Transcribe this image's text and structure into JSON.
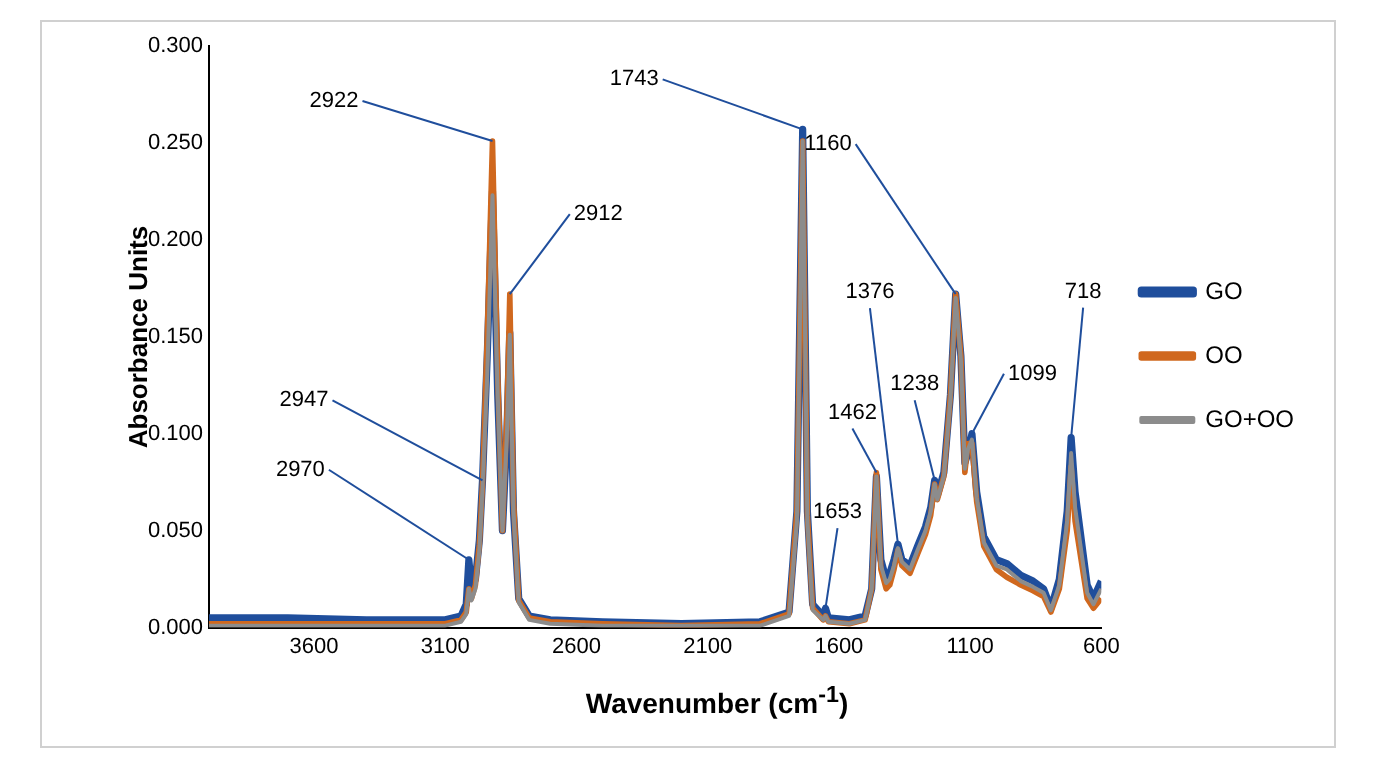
{
  "chart_data": {
    "type": "line",
    "xlabel": "Wavenumber (cm$^{-1}$)",
    "ylabel": "Absorbance Units",
    "x": [
      4000,
      3700,
      3400,
      3100,
      3040,
      3020,
      3010,
      3000,
      2985,
      2970,
      2958,
      2940,
      2920,
      2900,
      2882,
      2865,
      2854,
      2840,
      2820,
      2780,
      2700,
      2500,
      2200,
      1900,
      1790,
      1760,
      1738,
      1720,
      1700,
      1660,
      1651,
      1640,
      1560,
      1500,
      1475,
      1457,
      1440,
      1420,
      1406,
      1390,
      1375,
      1360,
      1329,
      1300,
      1270,
      1250,
      1235,
      1225,
      1200,
      1175,
      1155,
      1135,
      1120,
      1108,
      1093,
      1075,
      1048,
      1000,
      960,
      907,
      860,
      820,
      792,
      760,
      730,
      715,
      700,
      654,
      630,
      600
    ],
    "series": [
      {
        "name": "GO",
        "color": "#1f4e9c",
        "values": [
          0.005,
          0.005,
          0.004,
          0.004,
          0.006,
          0.012,
          0.035,
          0.02,
          0.025,
          0.045,
          0.076,
          0.14,
          0.225,
          0.12,
          0.05,
          0.1,
          0.152,
          0.06,
          0.015,
          0.006,
          0.004,
          0.003,
          0.002,
          0.003,
          0.008,
          0.06,
          0.257,
          0.06,
          0.012,
          0.006,
          0.01,
          0.005,
          0.004,
          0.006,
          0.02,
          0.078,
          0.035,
          0.025,
          0.028,
          0.035,
          0.043,
          0.035,
          0.032,
          0.042,
          0.052,
          0.062,
          0.076,
          0.068,
          0.08,
          0.12,
          0.172,
          0.14,
          0.085,
          0.09,
          0.1,
          0.07,
          0.047,
          0.035,
          0.033,
          0.027,
          0.024,
          0.02,
          0.01,
          0.025,
          0.06,
          0.098,
          0.07,
          0.022,
          0.015,
          0.024
        ]
      },
      {
        "name": "OO",
        "color": "#d0681e",
        "values": [
          0.002,
          0.002,
          0.002,
          0.002,
          0.004,
          0.008,
          0.02,
          0.015,
          0.022,
          0.043,
          0.074,
          0.15,
          0.251,
          0.13,
          0.05,
          0.11,
          0.172,
          0.065,
          0.014,
          0.005,
          0.003,
          0.002,
          0.001,
          0.002,
          0.007,
          0.06,
          0.251,
          0.058,
          0.01,
          0.004,
          0.006,
          0.003,
          0.002,
          0.004,
          0.02,
          0.08,
          0.03,
          0.02,
          0.022,
          0.03,
          0.04,
          0.032,
          0.028,
          0.038,
          0.048,
          0.058,
          0.074,
          0.066,
          0.078,
          0.12,
          0.172,
          0.14,
          0.08,
          0.095,
          0.095,
          0.065,
          0.042,
          0.03,
          0.026,
          0.022,
          0.019,
          0.016,
          0.008,
          0.02,
          0.05,
          0.083,
          0.055,
          0.015,
          0.01,
          0.015
        ]
      },
      {
        "name": "GO+OO",
        "color": "#8c8c8c",
        "values": [
          0.001,
          0.001,
          0.001,
          0.001,
          0.003,
          0.007,
          0.02,
          0.014,
          0.02,
          0.04,
          0.072,
          0.13,
          0.223,
          0.12,
          0.05,
          0.1,
          0.151,
          0.06,
          0.013,
          0.004,
          0.002,
          0.001,
          0.001,
          0.001,
          0.006,
          0.055,
          0.251,
          0.055,
          0.009,
          0.004,
          0.006,
          0.003,
          0.002,
          0.004,
          0.02,
          0.078,
          0.032,
          0.023,
          0.025,
          0.032,
          0.041,
          0.034,
          0.03,
          0.04,
          0.05,
          0.06,
          0.074,
          0.066,
          0.078,
          0.118,
          0.17,
          0.138,
          0.082,
          0.092,
          0.097,
          0.067,
          0.044,
          0.032,
          0.03,
          0.024,
          0.021,
          0.018,
          0.009,
          0.022,
          0.055,
          0.09,
          0.062,
          0.018,
          0.012,
          0.02
        ]
      }
    ],
    "xlim": [
      4000,
      600
    ],
    "xticks": [
      3600,
      3100,
      2600,
      2100,
      1600,
      1100,
      600
    ],
    "ylim": [
      0,
      0.3
    ],
    "yticks": [
      {
        "value": 0,
        "label": "0.000"
      },
      {
        "value": 0.05,
        "label": "0.050"
      },
      {
        "value": 0.1,
        "label": "0.100"
      },
      {
        "value": 0.15,
        "label": "0.150"
      },
      {
        "value": 0.2,
        "label": "0.200"
      },
      {
        "value": 0.25,
        "label": "0.250"
      },
      {
        "value": 0.3,
        "label": "0.300"
      }
    ],
    "annotations": [
      {
        "text": "2970",
        "x": 3010,
        "y": 0.035
      },
      {
        "text": "2947",
        "x": 2958,
        "y": 0.076
      },
      {
        "text": "2922",
        "x": 2920,
        "y": 0.251
      },
      {
        "text": "2912",
        "x": 2854,
        "y": 0.172
      },
      {
        "text": "1743",
        "x": 1738,
        "y": 0.257
      },
      {
        "text": "1653",
        "x": 1651,
        "y": 0.01
      },
      {
        "text": "1462",
        "x": 1457,
        "y": 0.08
      },
      {
        "text": "1376",
        "x": 1375,
        "y": 0.043
      },
      {
        "text": "1238",
        "x": 1235,
        "y": 0.076
      },
      {
        "text": "1160",
        "x": 1155,
        "y": 0.172
      },
      {
        "text": "1099",
        "x": 1093,
        "y": 0.1
      },
      {
        "text": "718",
        "x": 715,
        "y": 0.098
      }
    ],
    "grid": false,
    "legend": "right",
    "marker": "none",
    "line_style": "solid"
  }
}
